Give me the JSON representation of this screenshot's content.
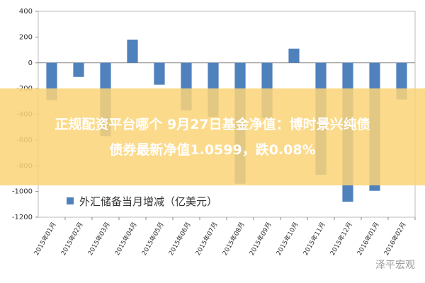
{
  "chart_data": {
    "type": "bar",
    "categories": [
      "2015年01月",
      "2015年02月",
      "2015年03月",
      "2015年04月",
      "2015年05月",
      "2015年06月",
      "2015年07月",
      "2015年08月",
      "2015年09月",
      "2015年10月",
      "2015年11月",
      "2015年12月",
      "2016年01月",
      "2016年02月"
    ],
    "series": [
      {
        "name": "外汇储备当月增减（亿美元）",
        "color": "#4f81bd",
        "values": [
          -290,
          -110,
          -570,
          180,
          -170,
          -370,
          -420,
          -940,
          -430,
          110,
          -870,
          -1080,
          -995,
          -285
        ]
      }
    ],
    "ylim": [
      -1200,
      400
    ],
    "yticks": [
      -1200,
      -1000,
      -800,
      -600,
      -400,
      -200,
      0,
      200,
      400
    ],
    "grid": false
  },
  "banner": {
    "lines": [
      "正规配资平台哪个 9月27日基金净值：博时景兴纯债",
      "债券最新净值1.0599，跌0.08%"
    ]
  },
  "watermark": "泽平宏观"
}
